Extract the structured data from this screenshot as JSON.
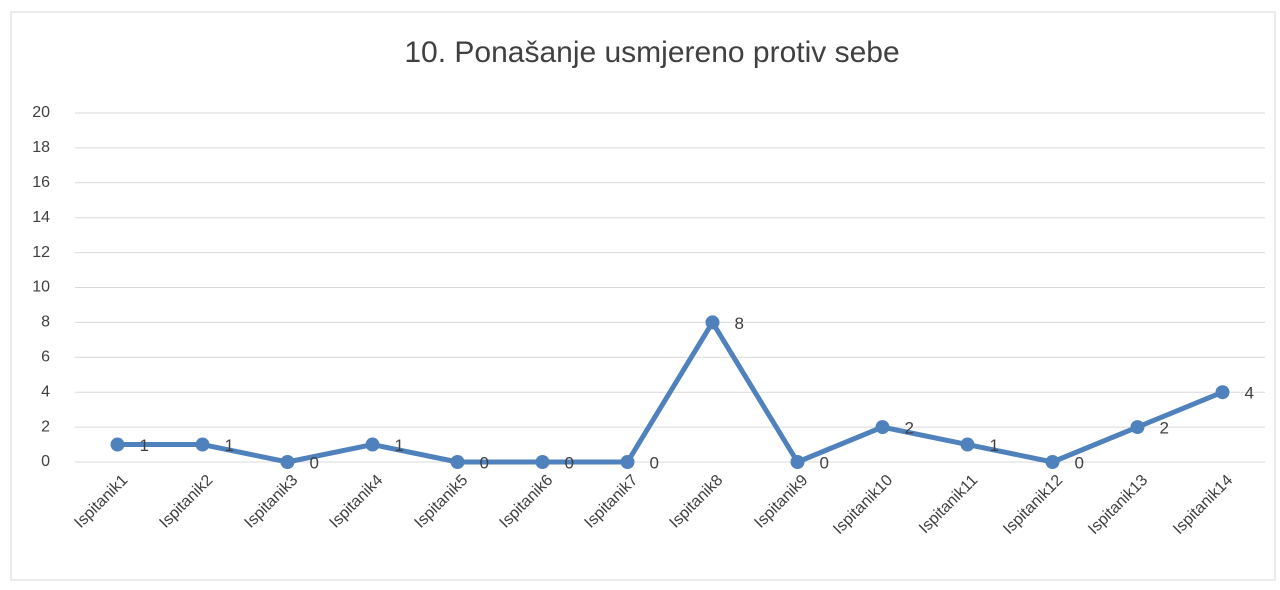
{
  "chart_data": {
    "type": "line",
    "title": "10. Ponašanje usmjereno protiv sebe",
    "categories": [
      "Ispitanik1",
      "Ispitanik2",
      "Ispitanik3",
      "Ispitanik4",
      "Ispitanik5",
      "Ispitanik6",
      "Ispitanik7",
      "Ispitanik8",
      "Ispitanik9",
      "Ispitanik10",
      "Ispitanik11",
      "Ispitanik12",
      "Ispitanik13",
      "Ispitanik14"
    ],
    "values": [
      1,
      1,
      0,
      1,
      0,
      0,
      0,
      8,
      0,
      2,
      1,
      0,
      2,
      4
    ],
    "color": "#4f81bd",
    "ylim": [
      0,
      20
    ],
    "yticks": [
      0,
      2,
      4,
      6,
      8,
      10,
      12,
      14,
      16,
      18,
      20
    ],
    "grid": true
  }
}
